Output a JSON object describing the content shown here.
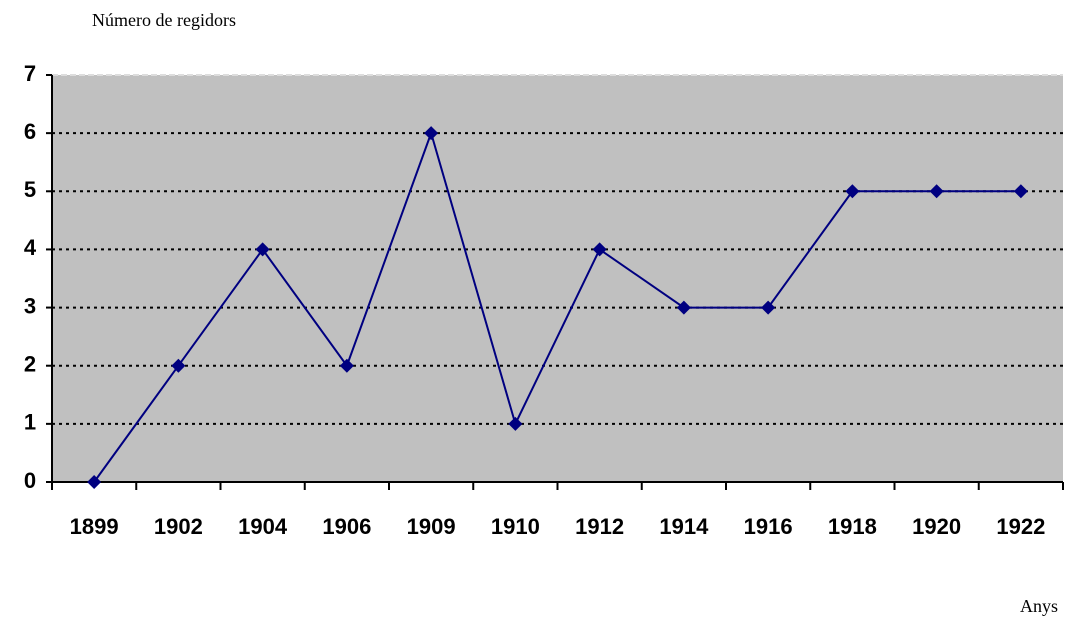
{
  "chart_data": {
    "type": "line",
    "y_axis_label": "Número de regidors",
    "x_axis_label": "Anys",
    "categories": [
      "1899",
      "1902",
      "1904",
      "1906",
      "1909",
      "1910",
      "1912",
      "1914",
      "1916",
      "1918",
      "1920",
      "1922"
    ],
    "series": [
      {
        "color": "#000080",
        "values": [
          0,
          2,
          4,
          2,
          6,
          1,
          4,
          3,
          3,
          5,
          5,
          5
        ]
      }
    ],
    "ylim": [
      0,
      7
    ],
    "yticks": [
      0,
      1,
      2,
      3,
      4,
      5,
      6,
      7
    ],
    "grid": true,
    "background": "#c0c0c0"
  }
}
